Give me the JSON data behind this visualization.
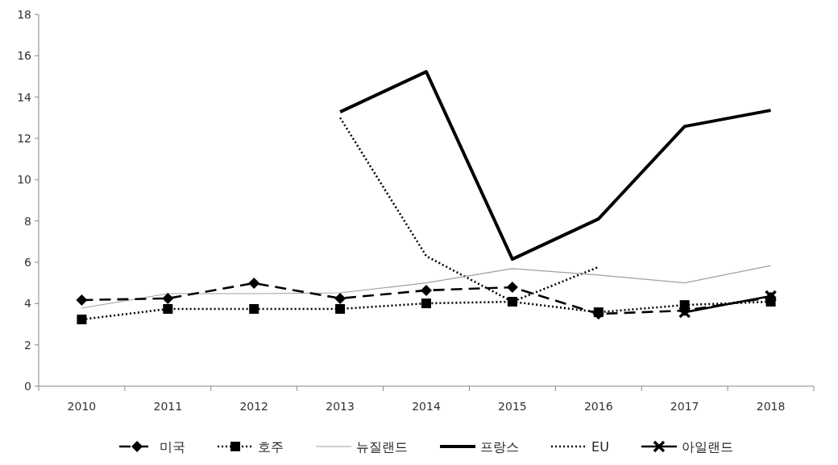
{
  "chart_data": {
    "type": "line",
    "categories": [
      "2010",
      "2011",
      "2012",
      "2013",
      "2014",
      "2015",
      "2016",
      "2017",
      "2018"
    ],
    "series": [
      {
        "name": "미국",
        "color": "#000000",
        "line_style": "dashed",
        "marker": "diamond",
        "values": [
          4.17,
          4.25,
          4.99,
          4.25,
          4.64,
          4.79,
          3.5,
          3.66,
          4.3
        ]
      },
      {
        "name": "호주",
        "color": "#000000",
        "line_style": "dotted",
        "marker": "square",
        "values": [
          3.23,
          3.74,
          3.74,
          3.74,
          4.01,
          4.09,
          3.58,
          3.93,
          4.09
        ]
      },
      {
        "name": "뉴질랜드",
        "color": "#a0a0a0",
        "line_style": "solid",
        "marker": "none",
        "values": [
          3.78,
          4.48,
          4.48,
          4.52,
          5.0,
          5.69,
          5.38,
          5.0,
          5.84
        ]
      },
      {
        "name": "프랑스",
        "color": "#000000",
        "line_style": "solid",
        "marker": "none",
        "values": [
          null,
          null,
          null,
          13.28,
          15.23,
          6.15,
          8.1,
          12.58,
          13.36
        ]
      },
      {
        "name": "EU",
        "color": "#000000",
        "line_style": "dotted",
        "marker": "none",
        "values": [
          null,
          null,
          null,
          13.0,
          6.3,
          4.09,
          5.77,
          null,
          null
        ]
      },
      {
        "name": "아일랜드",
        "color": "#000000",
        "line_style": "solid",
        "marker": "cross",
        "values": [
          null,
          null,
          null,
          null,
          null,
          null,
          null,
          3.58,
          4.36
        ]
      }
    ],
    "ylim": [
      0,
      18
    ],
    "yticks": [
      0,
      2,
      4,
      6,
      8,
      10,
      12,
      14,
      16,
      18
    ],
    "grid": false,
    "legend": "bottom"
  }
}
